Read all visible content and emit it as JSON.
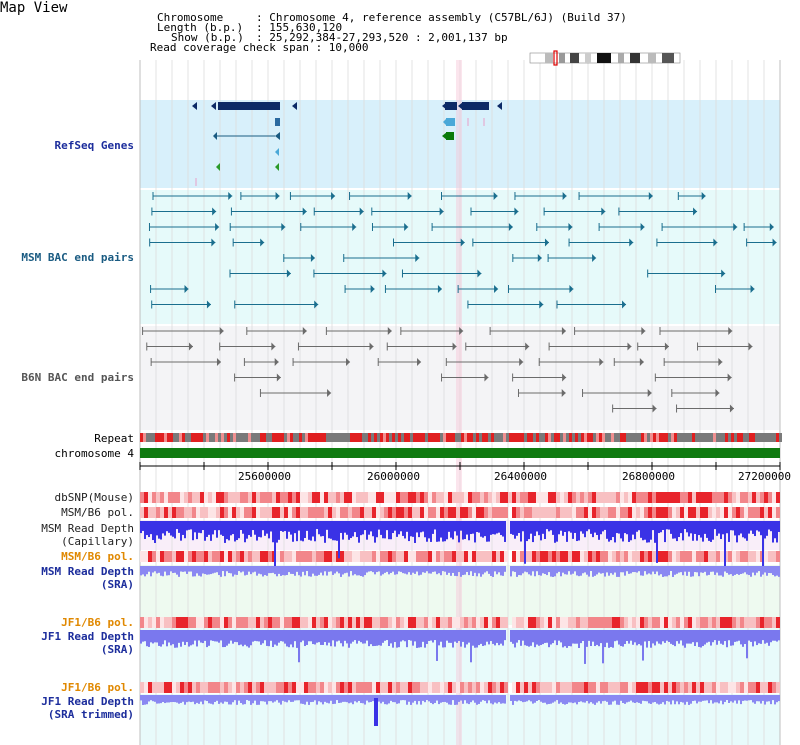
{
  "title": "Map View",
  "header": {
    "chromosome_key": "Chromosome",
    "chromosome_val": ": Chromosome 4, reference assembly (C57BL/6J) (Build 37)",
    "length_key": "Length (b.p.)",
    "length_val": ": 155,630,120",
    "show_key": "Show (b.p.)",
    "show_val": ": 25,292,384-27,293,520 : 2,001,137 bp",
    "coverage": "Read coverage check span : 10,000"
  },
  "tracks": {
    "refseq": "RefSeq Genes",
    "msm_bac": "MSM BAC end pairs",
    "b6n_bac": "B6N BAC end pairs",
    "repeat": "Repeat",
    "chromosome": "chromosome 4",
    "dbsnp": "dbSNP(Mouse)",
    "msm_b6_pol_1": "MSM/B6 pol.",
    "msm_depth_cap_1": "MSM Read Depth",
    "msm_depth_cap_2": "(Capillary)",
    "msm_b6_pol_2": "MSM/B6 pol.",
    "msm_depth_sra_1": "MSM Read Depth",
    "msm_depth_sra_2": "(SRA)",
    "jf1_b6_pol_1": "JF1/B6 pol.",
    "jf1_depth_sra_1": "JF1 Read Depth",
    "jf1_depth_sra_2": "(SRA)",
    "jf1_b6_pol_2": "JF1/B6 pol.",
    "jf1_depth_trim_1": "JF1 Read Depth",
    "jf1_depth_trim_2": "(SRA trimmed)"
  },
  "axis": {
    "ticks": [
      "25600000",
      "26000000",
      "26400000",
      "26800000",
      "27200000"
    ]
  },
  "colors": {
    "refseq_bg": "#d8f0fb",
    "bac_bg": "#e6fafa",
    "gray_bg": "#f4f4f6",
    "pink_bg": "#f9eef9",
    "green_bg": "#eefaf0",
    "cyan_bg": "#e8fbfb",
    "label_blue": "#1c2d9c",
    "label_teal": "#1a5b82",
    "label_orange": "#e08800",
    "gene_navy": "#0d2a66",
    "gene_green": "#0a7a0a",
    "snp_red": "#e8242b",
    "depth_blue": "#3a32e6",
    "depth_lavender": "#8a88f2",
    "chrom_green": "#0f7a10"
  }
}
